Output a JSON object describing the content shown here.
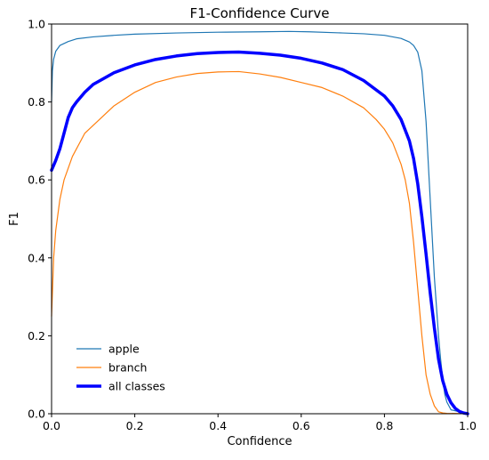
{
  "chart_data": {
    "type": "line",
    "title": "F1-Confidence Curve",
    "xlabel": "Confidence",
    "ylabel": "F1",
    "xlim": [
      0,
      1
    ],
    "ylim": [
      0,
      1
    ],
    "xticks": [
      "0.0",
      "0.2",
      "0.4",
      "0.6",
      "0.8",
      "1.0"
    ],
    "yticks": [
      "0.0",
      "0.2",
      "0.4",
      "0.6",
      "0.8",
      "1.0"
    ],
    "grid": false,
    "legend_position": "lower-left",
    "series": [
      {
        "name": "apple",
        "color": "#1f77b4",
        "style": "thin",
        "x": [
          0.0,
          0.002,
          0.005,
          0.01,
          0.02,
          0.04,
          0.06,
          0.1,
          0.15,
          0.2,
          0.3,
          0.4,
          0.5,
          0.57,
          0.62,
          0.7,
          0.75,
          0.8,
          0.84,
          0.86,
          0.87,
          0.88,
          0.89,
          0.9,
          0.91,
          0.92,
          0.93,
          0.935,
          0.94,
          0.945,
          0.95,
          0.96,
          1.0
        ],
        "y": [
          0.8,
          0.88,
          0.91,
          0.93,
          0.945,
          0.955,
          0.962,
          0.967,
          0.971,
          0.974,
          0.977,
          0.979,
          0.98,
          0.981,
          0.98,
          0.977,
          0.975,
          0.971,
          0.963,
          0.954,
          0.945,
          0.928,
          0.88,
          0.75,
          0.55,
          0.35,
          0.2,
          0.14,
          0.09,
          0.05,
          0.03,
          0.01,
          0.0
        ]
      },
      {
        "name": "branch",
        "color": "#ff7f0e",
        "style": "thin",
        "x": [
          0.0,
          0.005,
          0.01,
          0.02,
          0.03,
          0.05,
          0.08,
          0.1,
          0.15,
          0.2,
          0.25,
          0.3,
          0.35,
          0.4,
          0.45,
          0.5,
          0.55,
          0.6,
          0.65,
          0.7,
          0.75,
          0.78,
          0.8,
          0.82,
          0.84,
          0.85,
          0.86,
          0.87,
          0.88,
          0.89,
          0.9,
          0.91,
          0.92,
          0.93,
          0.94,
          0.95,
          1.0
        ],
        "y": [
          0.25,
          0.4,
          0.47,
          0.55,
          0.6,
          0.66,
          0.72,
          0.74,
          0.79,
          0.825,
          0.85,
          0.864,
          0.873,
          0.877,
          0.878,
          0.872,
          0.863,
          0.85,
          0.837,
          0.815,
          0.785,
          0.755,
          0.73,
          0.695,
          0.64,
          0.6,
          0.54,
          0.44,
          0.32,
          0.2,
          0.1,
          0.05,
          0.02,
          0.005,
          0.002,
          0.001,
          0.0
        ]
      },
      {
        "name": "all classes",
        "color": "#0000ff",
        "style": "thick",
        "x": [
          0.0,
          0.01,
          0.02,
          0.03,
          0.04,
          0.05,
          0.06,
          0.08,
          0.1,
          0.15,
          0.2,
          0.25,
          0.3,
          0.35,
          0.4,
          0.45,
          0.5,
          0.55,
          0.6,
          0.65,
          0.7,
          0.75,
          0.8,
          0.82,
          0.84,
          0.86,
          0.87,
          0.88,
          0.89,
          0.9,
          0.91,
          0.92,
          0.93,
          0.94,
          0.95,
          0.96,
          0.97,
          0.98,
          0.99,
          1.0
        ],
        "y": [
          0.625,
          0.65,
          0.68,
          0.72,
          0.76,
          0.785,
          0.8,
          0.825,
          0.845,
          0.875,
          0.895,
          0.909,
          0.918,
          0.924,
          0.927,
          0.928,
          0.925,
          0.92,
          0.912,
          0.9,
          0.883,
          0.855,
          0.815,
          0.79,
          0.755,
          0.7,
          0.655,
          0.59,
          0.505,
          0.41,
          0.31,
          0.22,
          0.14,
          0.085,
          0.05,
          0.028,
          0.014,
          0.006,
          0.002,
          0.0
        ]
      }
    ]
  }
}
